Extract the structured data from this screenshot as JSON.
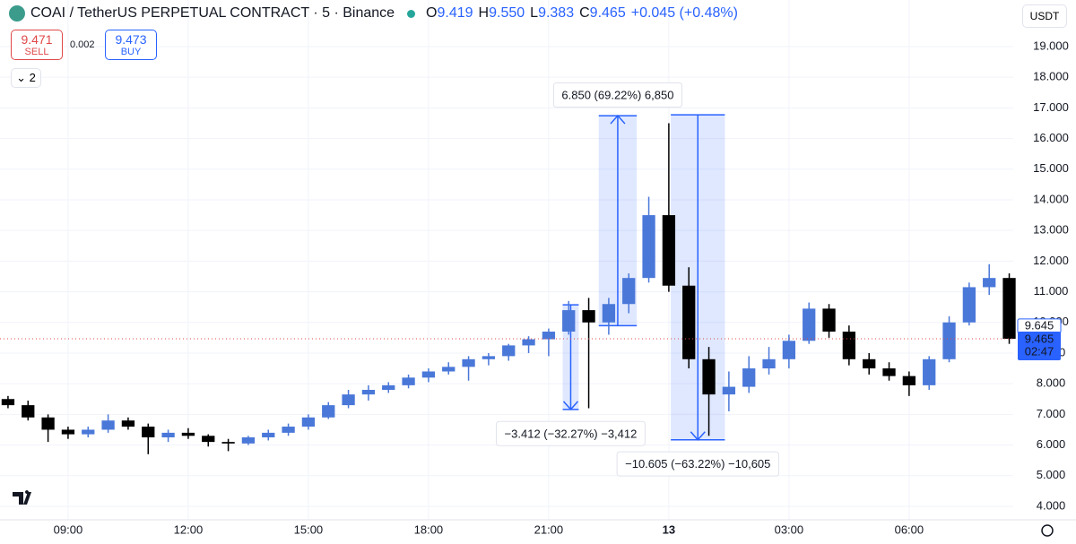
{
  "header": {
    "symbol": "COAI / TetherUS PERPETUAL CONTRACT · 5 · Binance",
    "ohlc": [
      {
        "key": "O",
        "value": "9.419"
      },
      {
        "key": "H",
        "value": "9.550"
      },
      {
        "key": "L",
        "value": "9.383"
      },
      {
        "key": "C",
        "value": "9.465"
      }
    ],
    "change": "+0.045 (+0.48%)",
    "sell_price": "9.471",
    "sell": "SELL",
    "spread": "0.002",
    "buy_price": "9.473",
    "buy": "BUY",
    "indicators": "2",
    "currency": "USDT"
  },
  "chart_data": {
    "type": "candlestick",
    "x": [
      7.5,
      8,
      8.5,
      9,
      9.5,
      10,
      10.5,
      11,
      11.5,
      12,
      12.5,
      13,
      13.5,
      14,
      14.5,
      15,
      15.5,
      16,
      16.5,
      17,
      17.5,
      18,
      18.5,
      19,
      19.5,
      20,
      20.5,
      21,
      21.5,
      22,
      22.5,
      23,
      23.5,
      24,
      24.5,
      25,
      25.5,
      26,
      26.5,
      27,
      27.5,
      28,
      28.5,
      29,
      29.5,
      30,
      30.5,
      31,
      31.5,
      32,
      32.5
    ],
    "open": [
      7.5,
      7.3,
      6.9,
      6.5,
      6.35,
      6.5,
      6.8,
      6.6,
      6.25,
      6.4,
      6.3,
      6.1,
      6.05,
      6.25,
      6.4,
      6.6,
      6.9,
      7.3,
      7.65,
      7.8,
      7.95,
      8.2,
      8.4,
      8.55,
      8.8,
      8.9,
      9.25,
      9.45,
      9.7,
      10.4,
      10.0,
      10.6,
      11.45,
      13.5,
      11.2,
      8.8,
      7.65,
      7.9,
      8.5,
      8.8,
      9.4,
      10.45,
      9.7,
      8.8,
      8.5,
      8.25,
      7.95,
      8.8,
      10.0,
      11.15,
      11.45
    ],
    "high": [
      7.6,
      7.45,
      7.0,
      6.6,
      6.6,
      7.0,
      6.9,
      6.7,
      6.5,
      6.55,
      6.35,
      6.2,
      6.3,
      6.5,
      6.7,
      7.0,
      7.4,
      7.8,
      7.95,
      8.05,
      8.3,
      8.5,
      8.7,
      8.9,
      9.0,
      9.3,
      9.55,
      9.8,
      10.7,
      10.8,
      10.8,
      11.6,
      14.1,
      16.5,
      11.8,
      9.2,
      8.4,
      8.9,
      9.2,
      9.6,
      10.65,
      10.6,
      9.9,
      9.0,
      8.7,
      8.4,
      8.9,
      10.2,
      11.3,
      11.9,
      11.6
    ],
    "low": [
      7.2,
      6.8,
      6.1,
      6.2,
      6.25,
      6.4,
      6.5,
      5.7,
      6.1,
      6.2,
      5.95,
      5.8,
      6.0,
      6.15,
      6.3,
      6.5,
      6.85,
      7.2,
      7.45,
      7.7,
      7.85,
      8.05,
      8.3,
      8.1,
      8.6,
      8.75,
      9.0,
      8.9,
      9.6,
      7.2,
      9.6,
      10.3,
      11.3,
      11.0,
      8.5,
      6.3,
      7.1,
      7.7,
      8.3,
      8.5,
      9.3,
      9.5,
      8.6,
      8.3,
      8.1,
      7.6,
      7.8,
      8.7,
      9.9,
      10.9,
      9.3
    ],
    "close": [
      7.3,
      6.9,
      6.5,
      6.35,
      6.5,
      6.8,
      6.6,
      6.25,
      6.4,
      6.3,
      6.1,
      6.05,
      6.25,
      6.4,
      6.6,
      6.9,
      7.3,
      7.65,
      7.8,
      7.95,
      8.2,
      8.4,
      8.55,
      8.8,
      8.9,
      9.25,
      9.45,
      9.7,
      10.4,
      10.0,
      10.6,
      11.45,
      13.5,
      11.2,
      8.8,
      7.65,
      7.9,
      8.5,
      8.8,
      9.4,
      10.45,
      9.7,
      8.8,
      8.5,
      8.25,
      7.95,
      8.8,
      10.0,
      11.15,
      11.45,
      9.465
    ],
    "xlim": [
      7.3,
      32.6
    ],
    "xticks": [
      {
        "value": 9,
        "label": "09:00"
      },
      {
        "value": 12,
        "label": "12:00"
      },
      {
        "value": 15,
        "label": "15:00"
      },
      {
        "value": 18,
        "label": "18:00"
      },
      {
        "value": 21,
        "label": "21:00"
      },
      {
        "value": 24,
        "label": "13"
      },
      {
        "value": 27,
        "label": "03:00"
      },
      {
        "value": 30,
        "label": "06:00"
      }
    ],
    "ylim": [
      3.56,
      20.52
    ],
    "yticks": [
      {
        "value": 4,
        "label": "4.000"
      },
      {
        "value": 5,
        "label": "5.000"
      },
      {
        "value": 6,
        "label": "6.000"
      },
      {
        "value": 7,
        "label": "7.000"
      },
      {
        "value": 8,
        "label": "8.000"
      },
      {
        "value": 9,
        "label": "9.000"
      },
      {
        "value": 10,
        "label": "10.000"
      },
      {
        "value": 11,
        "label": "11.000"
      },
      {
        "value": 12,
        "label": "12.000"
      },
      {
        "value": 13,
        "label": "13.000"
      },
      {
        "value": 14,
        "label": "14.000"
      },
      {
        "value": 15,
        "label": "15.000"
      },
      {
        "value": 16,
        "label": "16.000"
      },
      {
        "value": 17,
        "label": "17.000"
      },
      {
        "value": 18,
        "label": "18.000"
      },
      {
        "value": 19,
        "label": "19.000"
      }
    ],
    "up_color": "#4a78d9",
    "down_color": "#000000",
    "grid": true,
    "last_price": 9.465,
    "countdown": "02:47",
    "marked_price": 9.645,
    "measures": [
      {
        "t": [
          21.35,
          21.75
        ],
        "from": 10.574,
        "to": 7.162,
        "label": "−3.412 (−32.27%) −3,412"
      },
      {
        "t": [
          22.25,
          23.2
        ],
        "from": 9.896,
        "to": 16.746,
        "label": "6.850 (69.22%) 6,850"
      },
      {
        "t": [
          24.05,
          25.4
        ],
        "from": 16.775,
        "to": 6.17,
        "label": "−10.605 (−63.22%) −10,605"
      }
    ]
  }
}
